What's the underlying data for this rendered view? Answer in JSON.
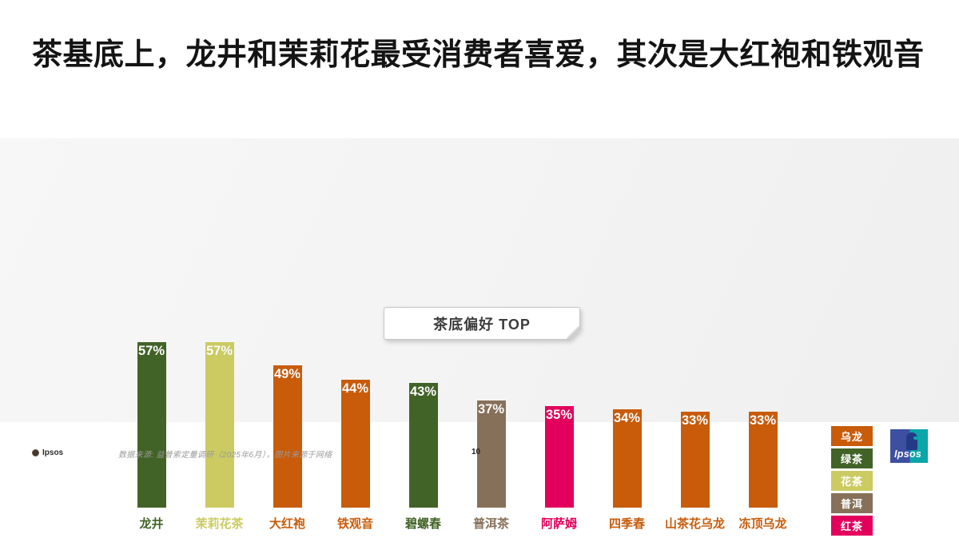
{
  "slide": {
    "title": "茶基底上，龙井和茉莉花最受消费者喜爱，其次是大红袍和铁观音",
    "source_note": "数据来源: 益普索定量调研（2025年6月），图片来源于网络",
    "page_number": "10",
    "footer_brand": "Ipsos",
    "logo_text": "Ipsos"
  },
  "chart_data": {
    "type": "bar",
    "title": "茶底偏好 TOP",
    "categories": [
      "龙井",
      "茉莉花茶",
      "大红袍",
      "铁观音",
      "碧螺春",
      "普洱茶",
      "阿萨姆",
      "四季春",
      "山茶花乌龙",
      "冻顶乌龙"
    ],
    "values": [
      57,
      57,
      49,
      44,
      43,
      37,
      35,
      34,
      33,
      33
    ],
    "value_labels": [
      "57%",
      "57%",
      "49%",
      "44%",
      "43%",
      "37%",
      "35%",
      "34%",
      "33%",
      "33%"
    ],
    "bar_colors": [
      "#426327",
      "#cbcb62",
      "#c85c0b",
      "#c85c0b",
      "#426327",
      "#87705a",
      "#e2005c",
      "#c85c0b",
      "#c85c0b",
      "#c85c0b"
    ],
    "ylim": [
      0,
      60
    ],
    "grid": false,
    "legend_position": "right",
    "legend": [
      {
        "label": "乌龙",
        "color": "#c85c0b"
      },
      {
        "label": "绿茶",
        "color": "#426327"
      },
      {
        "label": "花茶",
        "color": "#cbcb62"
      },
      {
        "label": "普洱",
        "color": "#87705a"
      },
      {
        "label": "红茶",
        "color": "#e2005c"
      }
    ],
    "colors": {
      "panel_background": "#f4f4f4",
      "title_text": "#141414",
      "value_label_text": "#ffffff",
      "logo_blue": "#3c4fa1",
      "logo_teal": "#0ba6a8"
    }
  }
}
